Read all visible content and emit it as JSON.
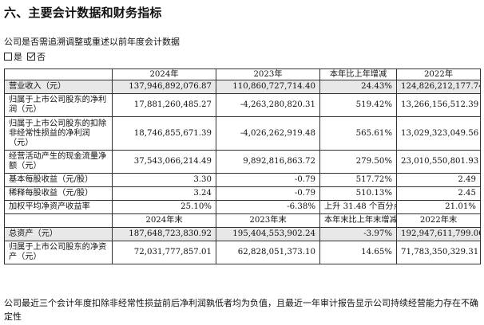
{
  "section_title": "六、主要会计数据和财务指标",
  "question": "公司是否需追溯调整或重述以前年度会计数据",
  "options": [
    {
      "label": "是",
      "checked": false
    },
    {
      "label": "否",
      "checked": true
    }
  ],
  "table1": {
    "headers": [
      "",
      "2024年",
      "2023年",
      "本年比上年增减",
      "2022年"
    ],
    "rows": [
      {
        "label": "营业收入（元）",
        "values": [
          "137,946,892,076.87",
          "110,860,727,714.40",
          "24.43%",
          "124,826,212,177.74"
        ]
      },
      {
        "label": "归属于上市公司股东的净利润（元）",
        "values": [
          "17,881,260,485.27",
          "-4,263,280,820.31",
          "519.42%",
          "13,266,156,512.39"
        ]
      },
      {
        "label": "归属于上市公司股东的扣除非经常性损益的净利润（元）",
        "values": [
          "18,746,855,671.39",
          "-4,026,262,919.48",
          "565.61%",
          "13,029,323,049.56"
        ]
      },
      {
        "label": "经营活动产生的现金流量净额（元）",
        "values": [
          "37,543,066,214.49",
          "9,892,816,863.72",
          "279.50%",
          "23,010,550,801.93"
        ]
      },
      {
        "label": "基本每股收益（元/股）",
        "values": [
          "3.30",
          "-0.79",
          "517.72%",
          "2.49"
        ]
      },
      {
        "label": "稀释每股收益（元/股）",
        "values": [
          "3.24",
          "-0.79",
          "510.13%",
          "2.45"
        ]
      },
      {
        "label": "加权平均净资产收益率",
        "values": [
          "25.10%",
          "-6.38%",
          "上升 31.48 个百分点",
          "21.01%"
        ]
      }
    ]
  },
  "table2": {
    "headers": [
      "",
      "2024年末",
      "2023年末",
      "本年末比上年末增减",
      "2022年末"
    ],
    "rows": [
      {
        "label": "总资产（元）",
        "values": [
          "187,648,723,830.92",
          "195,404,553,902.24",
          "-3.97%",
          "192,947,611,799.00"
        ]
      },
      {
        "label": "归属于上市公司股东的净资产（元）",
        "values": [
          "72,031,777,857.01",
          "62,828,051,373.10",
          "14.65%",
          "71,783,350,329.31"
        ]
      }
    ]
  },
  "footnote": "公司最近三个会计年度扣除非经常性损益前后净利润孰低者均为负值，且最近一年审计报告显示公司持续经营能力存在不确定性"
}
